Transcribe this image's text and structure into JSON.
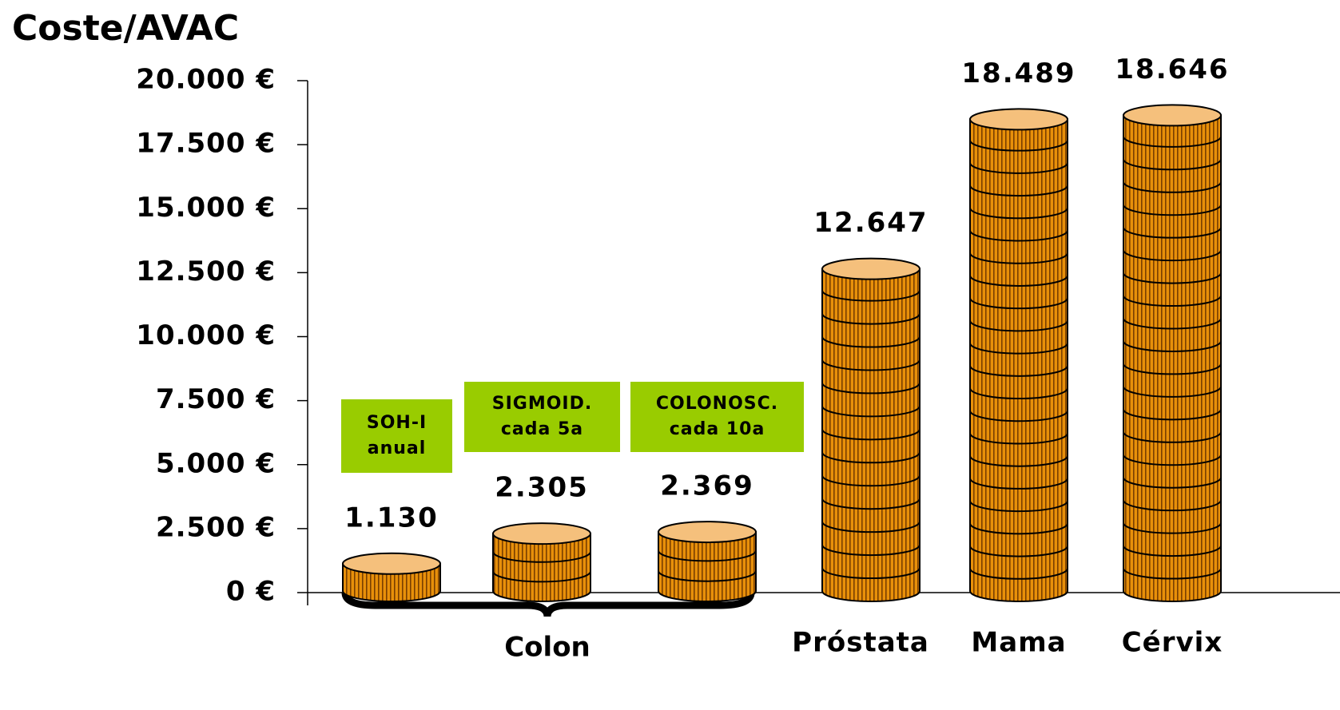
{
  "chart_data": {
    "type": "bar",
    "title": "Coste/AVAC",
    "categories": [
      "SOH-I\nanual",
      "SIGMOID.\ncada 5a",
      "COLONOSC.\ncada 10a",
      "Próstata",
      "Mama",
      "Cérvix"
    ],
    "group_label": "Colon",
    "values": [
      1130,
      2305,
      2369,
      12647,
      18489,
      18646
    ],
    "value_labels": [
      "1.130",
      "2.305",
      "2.369",
      "12.647",
      "18.489",
      "18.646"
    ],
    "color": "#e8900a",
    "box_color": "#99cc00",
    "ylim": [
      0,
      20000
    ],
    "yticks": [
      {
        "value": 0,
        "label": "0 €"
      },
      {
        "value": 2500,
        "label": "2.500 €"
      },
      {
        "value": 5000,
        "label": "5.000 €"
      },
      {
        "value": 7500,
        "label": "7.500 €"
      },
      {
        "value": 10000,
        "label": "10.000 €"
      },
      {
        "value": 12500,
        "label": "12.500 €"
      },
      {
        "value": 15000,
        "label": "15.000 €"
      },
      {
        "value": 17500,
        "label": "17.500 €"
      },
      {
        "value": 20000,
        "label": "20.000 €"
      }
    ]
  }
}
